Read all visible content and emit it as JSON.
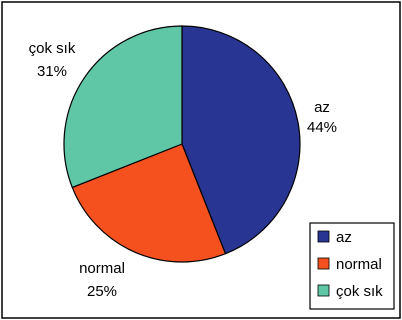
{
  "chart_data": {
    "type": "pie",
    "title": "",
    "categories": [
      "az",
      "normal",
      "çok sık"
    ],
    "values": [
      44,
      25,
      31
    ],
    "slice_labels": [
      {
        "name": "az",
        "percent": "44%"
      },
      {
        "name": "normal",
        "percent": "25%"
      },
      {
        "name": "çok sık",
        "percent": "31%"
      }
    ],
    "colors": [
      "#283593",
      "#f4511e",
      "#5fc7a5"
    ],
    "legend_placement": "bottom-right",
    "legend": [
      "az",
      "normal",
      "çok sık"
    ]
  }
}
